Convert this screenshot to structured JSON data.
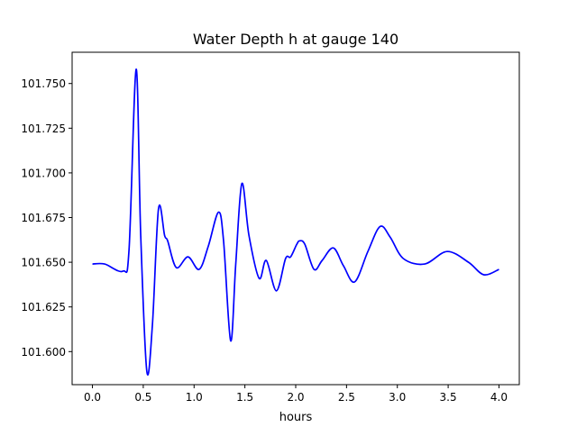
{
  "chart_data": {
    "type": "line",
    "title": "Water Depth h at gauge 140",
    "xlabel": "hours",
    "ylabel": "",
    "xlim": [
      -0.2,
      4.2
    ],
    "ylim": [
      101.5815,
      101.7675
    ],
    "xticks": [
      0.0,
      0.5,
      1.0,
      1.5,
      2.0,
      2.5,
      3.0,
      3.5,
      4.0
    ],
    "xtick_labels": [
      "0.0",
      "0.5",
      "1.0",
      "1.5",
      "2.0",
      "2.5",
      "3.0",
      "3.5",
      "4.0"
    ],
    "yticks": [
      101.6,
      101.625,
      101.65,
      101.675,
      101.7,
      101.725,
      101.75
    ],
    "ytick_labels": [
      "101.600",
      "101.625",
      "101.650",
      "101.675",
      "101.700",
      "101.725",
      "101.750"
    ],
    "grid": false,
    "series": [
      {
        "name": "h",
        "color": "#0000ff",
        "x": [
          0.0,
          0.12,
          0.3,
          0.36,
          0.43,
          0.475,
          0.535,
          0.59,
          0.65,
          0.71,
          0.74,
          0.825,
          0.94,
          1.05,
          1.14,
          1.24,
          1.29,
          1.36,
          1.41,
          1.47,
          1.54,
          1.64,
          1.71,
          1.81,
          1.9,
          1.95,
          2.01,
          2.04,
          2.09,
          2.18,
          2.26,
          2.37,
          2.47,
          2.58,
          2.71,
          2.83,
          2.93,
          3.06,
          3.27,
          3.49,
          3.7,
          3.85,
          4.0
        ],
        "y": [
          101.649,
          101.649,
          101.645,
          101.657,
          101.758,
          101.665,
          101.589,
          101.615,
          101.68,
          101.665,
          101.662,
          101.647,
          101.653,
          101.646,
          101.659,
          101.678,
          101.662,
          101.606,
          101.649,
          101.694,
          101.665,
          101.641,
          101.651,
          101.634,
          101.652,
          101.653,
          101.66,
          101.662,
          101.66,
          101.646,
          101.651,
          101.658,
          101.648,
          101.639,
          101.656,
          101.67,
          101.664,
          101.652,
          101.649,
          101.656,
          101.65,
          101.643,
          101.646
        ]
      }
    ]
  }
}
